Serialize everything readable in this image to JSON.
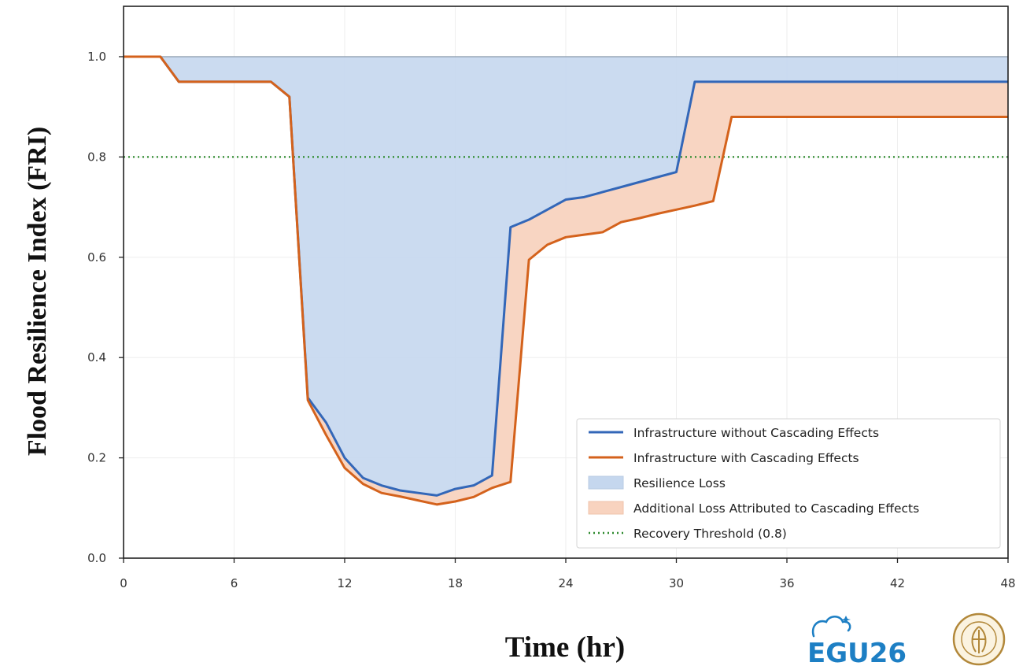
{
  "chart_data": {
    "type": "line",
    "title": "",
    "xlabel": "Time (hr)",
    "ylabel": "Flood Resilience Index (FRI)",
    "xlim": [
      0,
      48
    ],
    "ylim": [
      0,
      1.1
    ],
    "xticks": [
      0,
      6,
      12,
      18,
      24,
      30,
      36,
      42,
      48
    ],
    "xtick_labels": [
      "0",
      "6",
      "12",
      "18",
      "24",
      "30",
      "36",
      "42",
      "48"
    ],
    "yticks": [
      0,
      0.2,
      0.4,
      0.6,
      0.8,
      1.0
    ],
    "ytick_labels": [
      "0.0",
      "0.2",
      "0.4",
      "0.6",
      "0.8",
      "1.0"
    ],
    "grid": true,
    "legend_position": "bottom-right",
    "baseline": {
      "y": 1.0,
      "color": "#8899aa"
    },
    "series": [
      {
        "name": "Infrastructure without Cascading Effects",
        "color": "#3367b8",
        "x": [
          0,
          2,
          3,
          8,
          9,
          10,
          11,
          12,
          13,
          14,
          15,
          16,
          17,
          18,
          19,
          20,
          21,
          22,
          23,
          24,
          25,
          26,
          27,
          28,
          29,
          30,
          31,
          32,
          33,
          48
        ],
        "y": [
          1.0,
          1.0,
          0.95,
          0.95,
          0.92,
          0.32,
          0.27,
          0.2,
          0.16,
          0.145,
          0.135,
          0.13,
          0.125,
          0.138,
          0.145,
          0.165,
          0.66,
          0.675,
          0.695,
          0.715,
          0.72,
          0.73,
          0.74,
          0.75,
          0.76,
          0.77,
          0.95,
          0.95,
          0.95,
          0.95
        ]
      },
      {
        "name": "Infrastructure with Cascading Effects",
        "color": "#d4621c",
        "x": [
          0,
          2,
          3,
          8,
          9,
          10,
          11,
          12,
          13,
          14,
          15,
          16,
          17,
          18,
          19,
          20,
          21,
          22,
          23,
          24,
          25,
          26,
          27,
          28,
          29,
          30,
          31,
          32,
          33,
          48
        ],
        "y": [
          1.0,
          1.0,
          0.95,
          0.95,
          0.92,
          0.315,
          0.245,
          0.18,
          0.148,
          0.13,
          0.123,
          0.115,
          0.107,
          0.113,
          0.122,
          0.14,
          0.152,
          0.595,
          0.625,
          0.64,
          0.645,
          0.65,
          0.67,
          0.678,
          0.687,
          0.695,
          0.703,
          0.712,
          0.88,
          0.88
        ]
      }
    ],
    "fill_areas": [
      {
        "name": "Resilience Loss",
        "color": "#c5d7ee",
        "between": "baseline and Infrastructure without Cascading Effects"
      },
      {
        "name": "Additional Loss Attributed to Cascading Effects",
        "color": "#f8d3bf",
        "between": "Infrastructure without Cascading Effects and Infrastructure with Cascading Effects"
      }
    ],
    "threshold": {
      "name": "Recovery Threshold (0.8)",
      "y": 0.8,
      "color": "#2e8b2e",
      "style": "dotted"
    },
    "legend": [
      {
        "label": "Infrastructure without Cascading Effects",
        "kind": "line",
        "color": "#3367b8"
      },
      {
        "label": "Infrastructure with Cascading Effects",
        "kind": "line",
        "color": "#d4621c"
      },
      {
        "label": "Resilience Loss",
        "kind": "patch",
        "color": "#c5d7ee"
      },
      {
        "label": "Additional Loss Attributed to Cascading Effects",
        "kind": "patch",
        "color": "#f8d3bf"
      },
      {
        "label": "Recovery Threshold (0.8)",
        "kind": "dotted",
        "color": "#2e8b2e"
      }
    ]
  },
  "logos": {
    "egu": {
      "text": "EGU26",
      "color": "#1d7fc4"
    },
    "seal": {
      "icon": "university-seal",
      "color": "#b2883a"
    }
  }
}
